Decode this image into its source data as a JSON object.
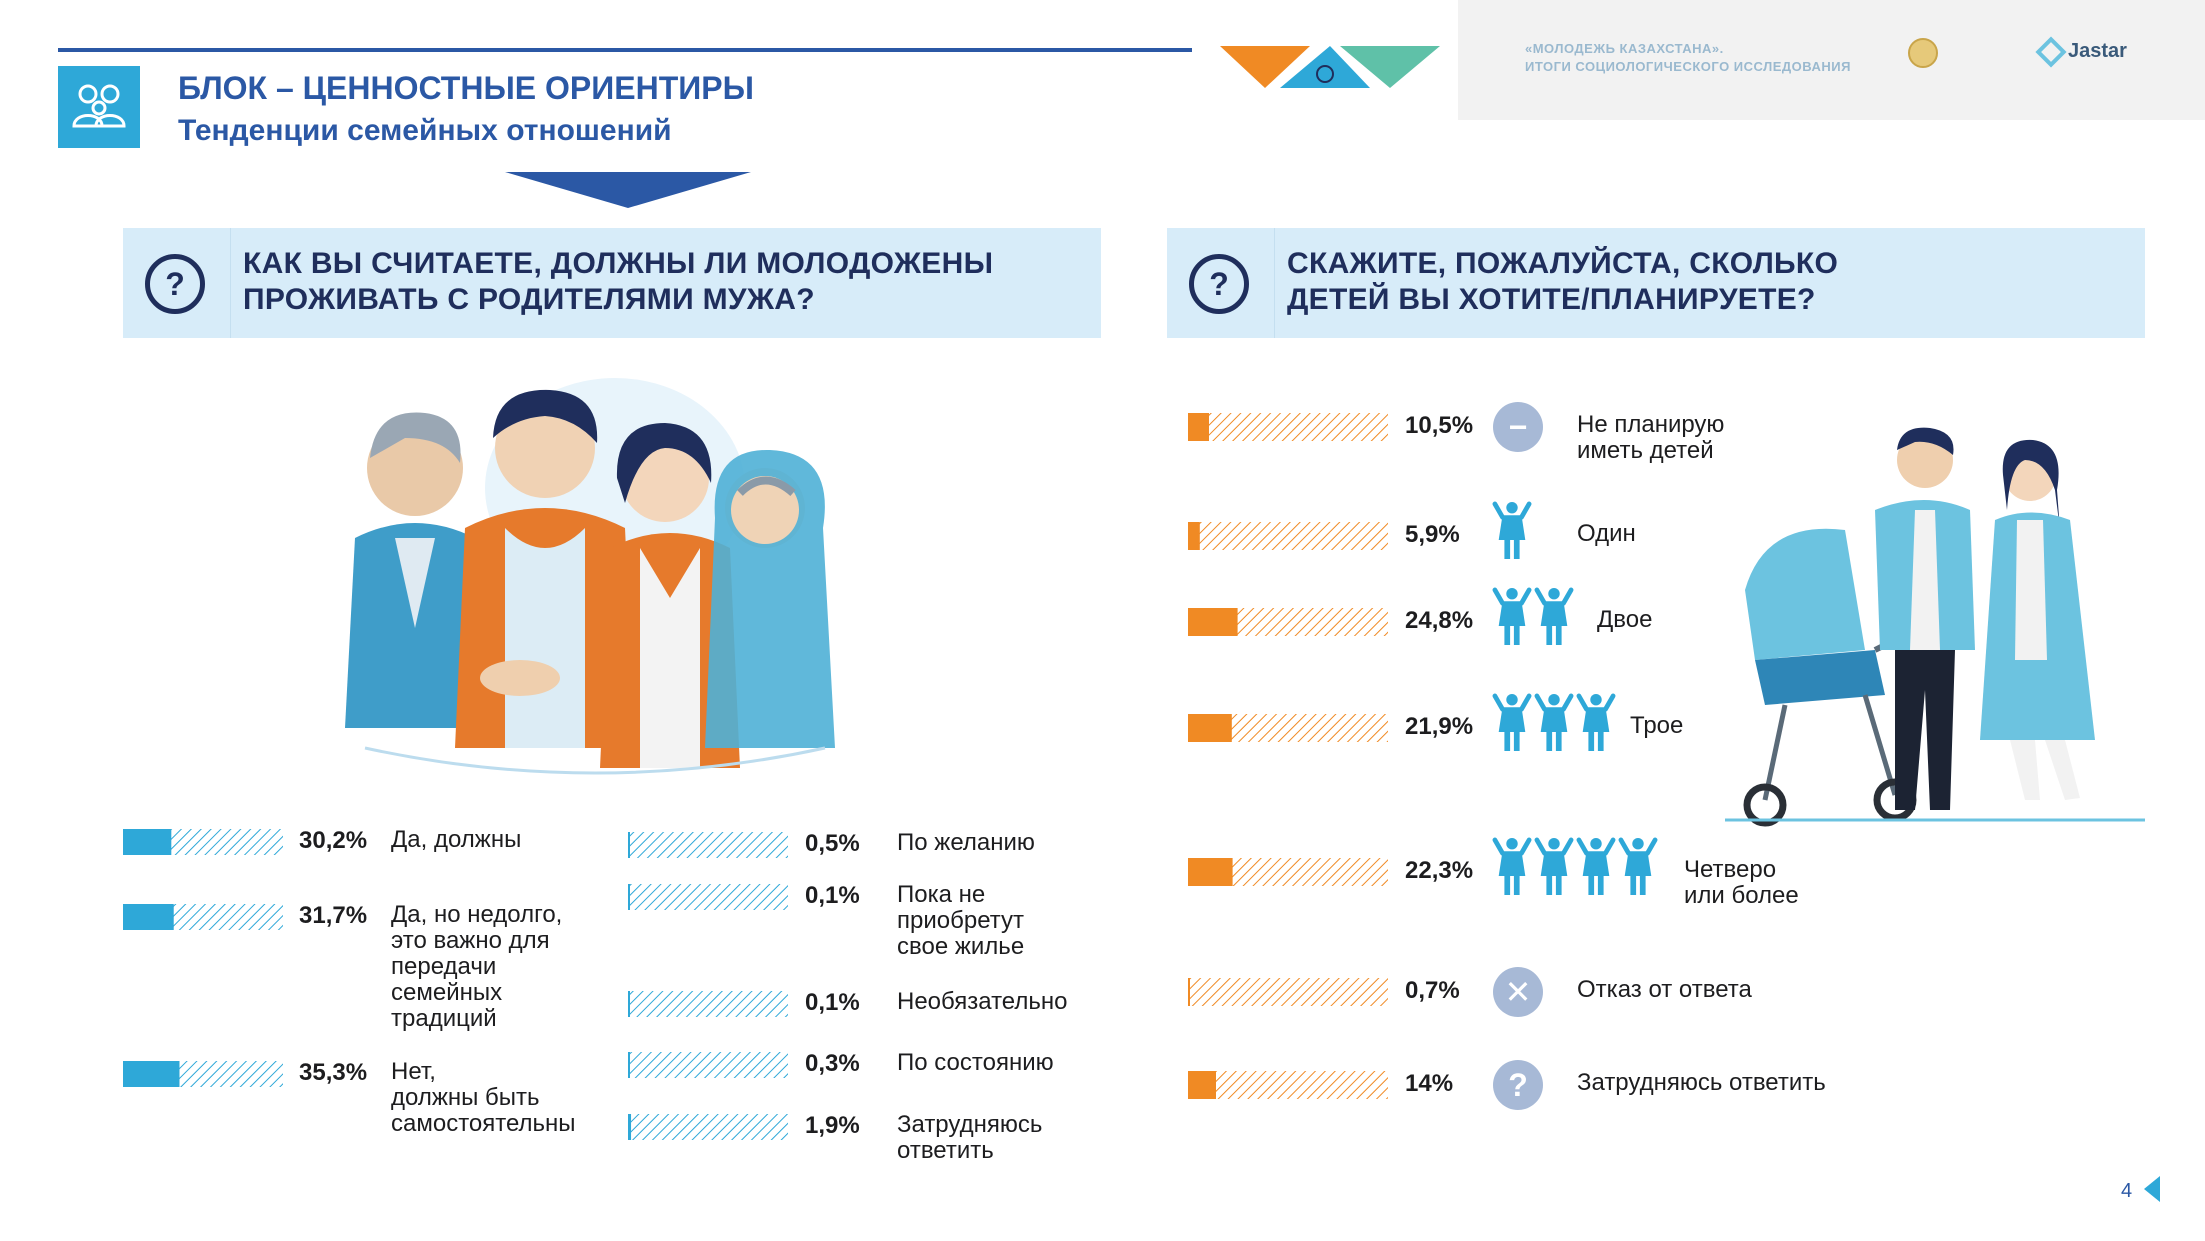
{
  "header": {
    "block_title": "БЛОК – ЦЕННОСТНЫЕ ОРИЕНТИРЫ",
    "block_subtitle": "Тенденции семейных отношений",
    "report_line1": "«МОЛОДЕЖЬ КАЗАХСТАНА».",
    "report_line2": "ИТОГИ СОЦИОЛОГИЧЕСКОГО ИССЛЕДОВАНИЯ",
    "brand": "Jastar"
  },
  "questions": {
    "left_line1": "КАК ВЫ СЧИТАЕТЕ, ДОЛЖНЫ ЛИ МОЛОДОЖЕНЫ",
    "left_line2": "ПРОЖИВАТЬ С РОДИТЕЛЯМИ МУЖА?",
    "right_line1": "СКАЖИТЕ, ПОЖАЛУЙСТА, СКОЛЬКО",
    "right_line2": "ДЕТЕЙ ВЫ ХОТИТЕ/ПЛАНИРУЕТЕ?",
    "icon": "?"
  },
  "colors": {
    "accent_blue": "#2b58a5",
    "bar_teal": "#2ea8d8",
    "bar_orange": "#f08a24",
    "question_bg": "#d7ecf9",
    "picto_blue": "#2ea8d8"
  },
  "chart_data": [
    {
      "type": "bar",
      "title": "КАК ВЫ СЧИТАЕТЕ, ДОЛЖНЫ ЛИ МОЛОДОЖЕНЫ ПРОЖИВАТЬ С РОДИТЕЛЯМИ МУЖА?",
      "orientation": "horizontal",
      "max": 100,
      "categories": [
        "Да, должны",
        "Да, но недолго, это важно для передачи семейных традиций",
        "Нет, должны быть самостоятельны",
        "По желанию",
        "Пока не приобретут свое жилье",
        "Необязательно",
        "По состоянию",
        "Затрудняюсь ответить"
      ],
      "values": [
        30.2,
        31.7,
        35.3,
        0.5,
        0.1,
        0.1,
        0.3,
        1.9
      ],
      "value_labels": [
        "30,2%",
        "31,7%",
        "35,3%",
        "0,5%",
        "0,1%",
        "0,1%",
        "0,3%",
        "1,9%"
      ],
      "label_lines": [
        [
          "Да, должны"
        ],
        [
          "Да, но недолго,",
          "это важно для",
          "передачи",
          "семейных",
          "традиций"
        ],
        [
          "Нет,",
          "должны быть",
          "самостоятельны"
        ],
        [
          "По желанию"
        ],
        [
          "Пока не",
          "приобретут",
          "свое жилье"
        ],
        [
          "Необязательно"
        ],
        [
          "По состоянию"
        ],
        [
          "Затрудняюсь",
          "ответить"
        ]
      ]
    },
    {
      "type": "bar",
      "title": "СКАЖИТЕ, ПОЖАЛУЙСТА, СКОЛЬКО ДЕТЕЙ ВЫ ХОТИТЕ/ПЛАНИРУЕТЕ?",
      "orientation": "horizontal",
      "max": 100,
      "categories": [
        "Не планирую иметь детей",
        "Один",
        "Двое",
        "Трое",
        "Четверо или более",
        "Отказ от ответа",
        "Затрудняюсь ответить"
      ],
      "values": [
        10.5,
        5.9,
        24.8,
        21.9,
        22.3,
        0.7,
        14
      ],
      "value_labels": [
        "10,5%",
        "5,9%",
        "24,8%",
        "21,9%",
        "22,3%",
        "0,7%",
        "14%"
      ],
      "label_lines": [
        [
          "Не планирую",
          "иметь детей"
        ],
        [
          "Один"
        ],
        [
          "Двое"
        ],
        [
          "Трое"
        ],
        [
          "Четверо",
          "или более"
        ],
        [
          "Отказ от ответа"
        ],
        [
          "Затрудняюсь ответить"
        ]
      ],
      "icons": [
        "minus-icon",
        "child-icon",
        "child-icon",
        "child-icon",
        "child-icon",
        "close-icon",
        "question-icon"
      ],
      "icon_counts": [
        0,
        1,
        2,
        3,
        4,
        0,
        0
      ]
    }
  ],
  "page_number": "4"
}
